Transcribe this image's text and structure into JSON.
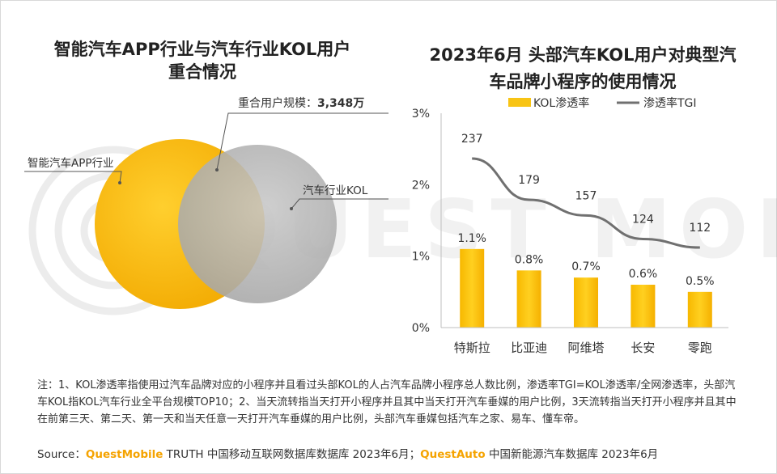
{
  "watermark": "QUEST MOBILE",
  "colors": {
    "orange": "#f5b300",
    "gray": "#b3b3b3",
    "bar": "#f8c414",
    "line": "#707070",
    "brand": "#f5a300"
  },
  "venn": {
    "title_line1": "智能汽车APP行业与汽车行业KOL用户",
    "title_line2": "重合情况",
    "overlap_label": "重合用户规模：",
    "overlap_value": "3,348万",
    "left_label": "智能汽车APP行业",
    "right_label": "汽车行业KOL"
  },
  "chart_data": {
    "type": "bar+line",
    "title_line1": "2023年6月 头部汽车KOL用户对典型汽",
    "title_line2": "车品牌小程序的使用情况",
    "categories": [
      "特斯拉",
      "比亚迪",
      "阿维塔",
      "长安",
      "零跑"
    ],
    "series": [
      {
        "name": "KOL渗透率",
        "type": "bar",
        "axis": "left",
        "values": [
          1.1,
          0.8,
          0.7,
          0.6,
          0.5
        ],
        "labels": [
          "1.1%",
          "0.8%",
          "0.7%",
          "0.6%",
          "0.5%"
        ]
      },
      {
        "name": "渗透率TGI",
        "type": "line",
        "axis": "none",
        "values": [
          237,
          179,
          157,
          124,
          112
        ],
        "labels": [
          "237",
          "179",
          "157",
          "124",
          "112"
        ]
      }
    ],
    "ylim": [
      0,
      3
    ],
    "yticks": [
      0,
      1,
      2,
      3
    ],
    "ytick_labels": [
      "0%",
      "1%",
      "2%",
      "3%"
    ],
    "legend_position": "top"
  },
  "note": "注：1、KOL渗透率指使用过汽车品牌对应的小程序并且看过头部KOL的人占汽车品牌小程序总人数比例，渗透率TGI=KOL渗透率/全网渗透率，头部汽车KOL指KOL汽车行业全平台规模TOP10；2、当天流转指当天打开小程序并且其中当天打开汽车垂媒的用户比例，3天流转指当天打开小程序并且其中在前第三天、第二天、第一天和当天任意一天打开汽车垂媒的用户比例，头部汽车垂媒包括汽车之家、易车、懂车帝。",
  "source": {
    "prefix": "Source：",
    "brand1": "QuestMobile",
    "text1": " TRUTH 中国移动互联网数据库数据库 2023年6月；",
    "brand2": "QuestAuto",
    "text2": " 中国新能源汽车数据库 2023年6月"
  }
}
